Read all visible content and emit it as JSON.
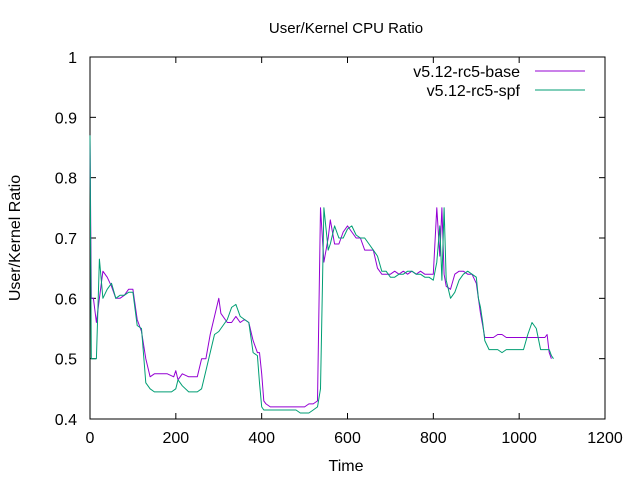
{
  "chart_data": {
    "type": "line",
    "title": "User/Kernel CPU Ratio",
    "xlabel": "Time",
    "ylabel": "User/Kernel Ratio",
    "xlim": [
      0,
      1200
    ],
    "ylim": [
      0.4,
      1.0
    ],
    "xticks": [
      "0",
      "200",
      "400",
      "600",
      "800",
      "1000",
      "1200"
    ],
    "yticks": [
      "0.4",
      "0.5",
      "0.6",
      "0.7",
      "0.8",
      "0.9",
      "1"
    ],
    "grid": false,
    "legend": "top-right",
    "series": [
      {
        "name": "v5.12-rc5-base",
        "color": "#9400d3",
        "points": [
          [
            0,
            0.87
          ],
          [
            3,
            0.6
          ],
          [
            8,
            0.6
          ],
          [
            15,
            0.56
          ],
          [
            22,
            0.6
          ],
          [
            30,
            0.645
          ],
          [
            40,
            0.635
          ],
          [
            50,
            0.62
          ],
          [
            60,
            0.6
          ],
          [
            70,
            0.6
          ],
          [
            80,
            0.605
          ],
          [
            90,
            0.615
          ],
          [
            100,
            0.615
          ],
          [
            110,
            0.565
          ],
          [
            120,
            0.545
          ],
          [
            130,
            0.5
          ],
          [
            140,
            0.47
          ],
          [
            150,
            0.475
          ],
          [
            170,
            0.475
          ],
          [
            180,
            0.475
          ],
          [
            195,
            0.47
          ],
          [
            200,
            0.48
          ],
          [
            205,
            0.465
          ],
          [
            215,
            0.475
          ],
          [
            230,
            0.47
          ],
          [
            250,
            0.47
          ],
          [
            260,
            0.5
          ],
          [
            270,
            0.5
          ],
          [
            280,
            0.54
          ],
          [
            290,
            0.57
          ],
          [
            300,
            0.6
          ],
          [
            305,
            0.575
          ],
          [
            320,
            0.56
          ],
          [
            330,
            0.56
          ],
          [
            340,
            0.57
          ],
          [
            350,
            0.56
          ],
          [
            360,
            0.565
          ],
          [
            370,
            0.56
          ],
          [
            380,
            0.53
          ],
          [
            390,
            0.51
          ],
          [
            395,
            0.51
          ],
          [
            400,
            0.475
          ],
          [
            405,
            0.43
          ],
          [
            410,
            0.425
          ],
          [
            420,
            0.42
          ],
          [
            440,
            0.42
          ],
          [
            460,
            0.42
          ],
          [
            470,
            0.42
          ],
          [
            480,
            0.42
          ],
          [
            490,
            0.42
          ],
          [
            500,
            0.42
          ],
          [
            510,
            0.425
          ],
          [
            520,
            0.425
          ],
          [
            530,
            0.43
          ],
          [
            537,
            0.75
          ],
          [
            545,
            0.66
          ],
          [
            555,
            0.7
          ],
          [
            560,
            0.73
          ],
          [
            570,
            0.69
          ],
          [
            580,
            0.69
          ],
          [
            590,
            0.71
          ],
          [
            600,
            0.72
          ],
          [
            610,
            0.71
          ],
          [
            620,
            0.7
          ],
          [
            630,
            0.7
          ],
          [
            640,
            0.68
          ],
          [
            650,
            0.68
          ],
          [
            660,
            0.68
          ],
          [
            670,
            0.65
          ],
          [
            680,
            0.64
          ],
          [
            690,
            0.64
          ],
          [
            700,
            0.64
          ],
          [
            710,
            0.645
          ],
          [
            720,
            0.64
          ],
          [
            730,
            0.645
          ],
          [
            740,
            0.64
          ],
          [
            750,
            0.645
          ],
          [
            760,
            0.64
          ],
          [
            770,
            0.645
          ],
          [
            780,
            0.64
          ],
          [
            790,
            0.64
          ],
          [
            800,
            0.64
          ],
          [
            808,
            0.75
          ],
          [
            815,
            0.67
          ],
          [
            820,
            0.75
          ],
          [
            825,
            0.64
          ],
          [
            830,
            0.62
          ],
          [
            840,
            0.615
          ],
          [
            850,
            0.64
          ],
          [
            860,
            0.645
          ],
          [
            870,
            0.645
          ],
          [
            880,
            0.64
          ],
          [
            890,
            0.64
          ],
          [
            900,
            0.625
          ],
          [
            905,
            0.6
          ],
          [
            910,
            0.575
          ],
          [
            915,
            0.555
          ],
          [
            920,
            0.535
          ],
          [
            930,
            0.535
          ],
          [
            940,
            0.535
          ],
          [
            950,
            0.54
          ],
          [
            960,
            0.54
          ],
          [
            970,
            0.535
          ],
          [
            980,
            0.535
          ],
          [
            990,
            0.535
          ],
          [
            1000,
            0.535
          ],
          [
            1010,
            0.535
          ],
          [
            1020,
            0.535
          ],
          [
            1030,
            0.535
          ],
          [
            1040,
            0.535
          ],
          [
            1050,
            0.535
          ],
          [
            1060,
            0.535
          ],
          [
            1065,
            0.54
          ],
          [
            1070,
            0.51
          ],
          [
            1075,
            0.5
          ]
        ]
      },
      {
        "name": "v5.12-rc5-spf",
        "color": "#009e73",
        "points": [
          [
            0,
            0.87
          ],
          [
            3,
            0.5
          ],
          [
            8,
            0.5
          ],
          [
            15,
            0.5
          ],
          [
            22,
            0.665
          ],
          [
            30,
            0.6
          ],
          [
            40,
            0.615
          ],
          [
            50,
            0.625
          ],
          [
            60,
            0.6
          ],
          [
            70,
            0.605
          ],
          [
            80,
            0.605
          ],
          [
            90,
            0.61
          ],
          [
            100,
            0.61
          ],
          [
            110,
            0.555
          ],
          [
            120,
            0.55
          ],
          [
            130,
            0.46
          ],
          [
            140,
            0.45
          ],
          [
            150,
            0.445
          ],
          [
            160,
            0.445
          ],
          [
            170,
            0.445
          ],
          [
            180,
            0.445
          ],
          [
            190,
            0.445
          ],
          [
            200,
            0.45
          ],
          [
            205,
            0.465
          ],
          [
            215,
            0.455
          ],
          [
            230,
            0.445
          ],
          [
            250,
            0.445
          ],
          [
            260,
            0.45
          ],
          [
            270,
            0.48
          ],
          [
            280,
            0.51
          ],
          [
            290,
            0.54
          ],
          [
            300,
            0.545
          ],
          [
            305,
            0.55
          ],
          [
            320,
            0.565
          ],
          [
            330,
            0.585
          ],
          [
            340,
            0.59
          ],
          [
            350,
            0.57
          ],
          [
            360,
            0.565
          ],
          [
            370,
            0.56
          ],
          [
            380,
            0.51
          ],
          [
            390,
            0.505
          ],
          [
            395,
            0.46
          ],
          [
            400,
            0.42
          ],
          [
            405,
            0.415
          ],
          [
            410,
            0.415
          ],
          [
            420,
            0.415
          ],
          [
            440,
            0.415
          ],
          [
            460,
            0.415
          ],
          [
            470,
            0.415
          ],
          [
            480,
            0.415
          ],
          [
            490,
            0.41
          ],
          [
            500,
            0.41
          ],
          [
            510,
            0.41
          ],
          [
            520,
            0.415
          ],
          [
            530,
            0.42
          ],
          [
            537,
            0.45
          ],
          [
            545,
            0.75
          ],
          [
            555,
            0.68
          ],
          [
            560,
            0.69
          ],
          [
            570,
            0.72
          ],
          [
            580,
            0.7
          ],
          [
            590,
            0.7
          ],
          [
            600,
            0.715
          ],
          [
            610,
            0.72
          ],
          [
            620,
            0.705
          ],
          [
            630,
            0.7
          ],
          [
            640,
            0.7
          ],
          [
            650,
            0.69
          ],
          [
            660,
            0.68
          ],
          [
            670,
            0.67
          ],
          [
            680,
            0.645
          ],
          [
            690,
            0.645
          ],
          [
            700,
            0.635
          ],
          [
            710,
            0.635
          ],
          [
            720,
            0.64
          ],
          [
            730,
            0.64
          ],
          [
            740,
            0.645
          ],
          [
            750,
            0.645
          ],
          [
            760,
            0.64
          ],
          [
            770,
            0.64
          ],
          [
            780,
            0.635
          ],
          [
            790,
            0.635
          ],
          [
            800,
            0.63
          ],
          [
            808,
            0.66
          ],
          [
            815,
            0.72
          ],
          [
            820,
            0.63
          ],
          [
            825,
            0.75
          ],
          [
            830,
            0.63
          ],
          [
            840,
            0.6
          ],
          [
            850,
            0.61
          ],
          [
            860,
            0.63
          ],
          [
            870,
            0.64
          ],
          [
            880,
            0.645
          ],
          [
            890,
            0.64
          ],
          [
            900,
            0.635
          ],
          [
            905,
            0.6
          ],
          [
            910,
            0.585
          ],
          [
            915,
            0.56
          ],
          [
            920,
            0.53
          ],
          [
            930,
            0.515
          ],
          [
            940,
            0.515
          ],
          [
            950,
            0.515
          ],
          [
            960,
            0.51
          ],
          [
            970,
            0.515
          ],
          [
            980,
            0.515
          ],
          [
            990,
            0.515
          ],
          [
            1000,
            0.515
          ],
          [
            1010,
            0.515
          ],
          [
            1020,
            0.54
          ],
          [
            1030,
            0.56
          ],
          [
            1040,
            0.55
          ],
          [
            1050,
            0.515
          ],
          [
            1060,
            0.515
          ],
          [
            1065,
            0.515
          ],
          [
            1070,
            0.515
          ],
          [
            1075,
            0.505
          ],
          [
            1080,
            0.5
          ]
        ]
      }
    ]
  }
}
